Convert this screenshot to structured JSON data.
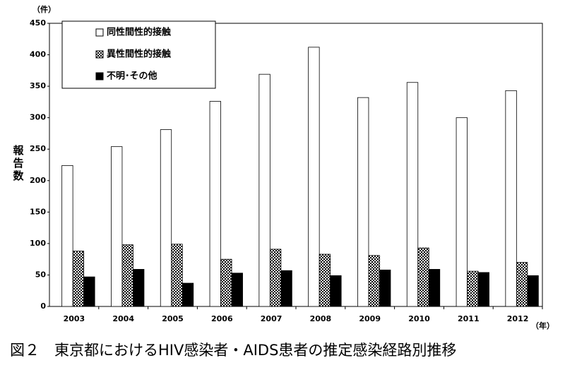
{
  "chart_data": {
    "type": "bar",
    "title": "図２　東京都におけるHIV感染者・AIDS患者の推定感染経路別推移",
    "y_label": "報告数",
    "y_unit": "（件）",
    "x_unit": "（年）",
    "categories": [
      "2003",
      "2004",
      "2005",
      "2006",
      "2007",
      "2008",
      "2009",
      "2010",
      "2011",
      "2012"
    ],
    "series": [
      {
        "name": "同性間性的接触",
        "color": "#ffffff",
        "values": [
          224,
          254,
          281,
          326,
          369,
          412,
          332,
          356,
          300,
          343
        ]
      },
      {
        "name": "異性間性的接触",
        "color": "#000000",
        "pattern": "checker",
        "values": [
          88,
          98,
          99,
          75,
          91,
          83,
          81,
          93,
          56,
          70
        ]
      },
      {
        "name": "不明･その他",
        "color": "#000000",
        "values": [
          47,
          59,
          37,
          53,
          57,
          49,
          58,
          59,
          54,
          49
        ]
      }
    ],
    "ylim": [
      0,
      450
    ],
    "yticks": [
      0,
      50,
      100,
      150,
      200,
      250,
      300,
      350,
      400,
      450
    ],
    "legend": "top-left"
  }
}
